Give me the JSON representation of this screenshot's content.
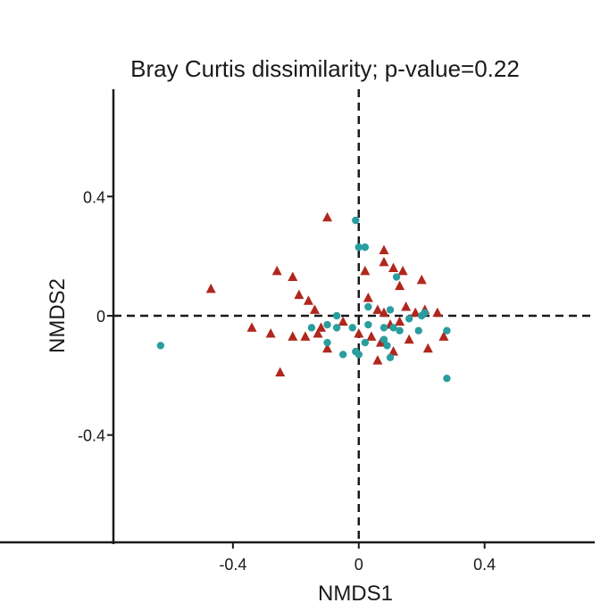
{
  "chart_data": {
    "type": "scatter",
    "title": "Bray Curtis dissimilarity; p-value=0.22",
    "xlabel": "NMDS1",
    "ylabel": "NMDS2",
    "xlim": [
      -0.78,
      0.75
    ],
    "ylim": [
      -0.76,
      0.76
    ],
    "xticks": [
      {
        "value": -0.4,
        "label": "-0.4"
      },
      {
        "value": 0,
        "label": "0"
      },
      {
        "value": 0.4,
        "label": "0.4"
      }
    ],
    "yticks": [
      {
        "value": 0.4,
        "label": "0.4"
      },
      {
        "value": 0,
        "label": "0"
      },
      {
        "value": -0.4,
        "label": "-0.4"
      }
    ],
    "reference_lines": {
      "x": 0,
      "y": 0,
      "style": "dashed"
    },
    "grid": false,
    "legend": "none",
    "series": [
      {
        "marker": "triangle",
        "color": "#b0271d",
        "points": [
          [
            -0.1,
            0.33
          ],
          [
            -0.47,
            0.09
          ],
          [
            -0.26,
            0.15
          ],
          [
            -0.21,
            0.13
          ],
          [
            -0.19,
            0.07
          ],
          [
            -0.16,
            0.05
          ],
          [
            -0.14,
            0.02
          ],
          [
            -0.34,
            -0.04
          ],
          [
            -0.28,
            -0.06
          ],
          [
            -0.21,
            -0.07
          ],
          [
            -0.17,
            -0.07
          ],
          [
            -0.13,
            -0.06
          ],
          [
            -0.12,
            -0.04
          ],
          [
            -0.1,
            -0.11
          ],
          [
            -0.05,
            -0.02
          ],
          [
            -0.25,
            -0.19
          ],
          [
            0.08,
            0.22
          ],
          [
            0.08,
            0.18
          ],
          [
            0.02,
            0.15
          ],
          [
            0.11,
            0.16
          ],
          [
            0.14,
            0.15
          ],
          [
            0.2,
            0.12
          ],
          [
            0.13,
            0.1
          ],
          [
            0.03,
            0.06
          ],
          [
            0.06,
            0.02
          ],
          [
            0.08,
            0.01
          ],
          [
            0.15,
            0.03
          ],
          [
            0.18,
            0.01
          ],
          [
            0.21,
            0.02
          ],
          [
            0.25,
            0.01
          ],
          [
            0.1,
            -0.03
          ],
          [
            0.13,
            -0.02
          ],
          [
            0.04,
            -0.07
          ],
          [
            0.07,
            -0.09
          ],
          [
            0.16,
            -0.08
          ],
          [
            0.27,
            -0.07
          ],
          [
            0.11,
            -0.12
          ],
          [
            0.22,
            -0.11
          ],
          [
            0.06,
            -0.15
          ],
          [
            0.0,
            -0.06
          ]
        ]
      },
      {
        "marker": "circle",
        "color": "#2a9d9f",
        "points": [
          [
            -0.63,
            -0.1
          ],
          [
            -0.01,
            0.32
          ],
          [
            0.0,
            0.23
          ],
          [
            0.02,
            0.23
          ],
          [
            0.12,
            0.13
          ],
          [
            0.03,
            0.03
          ],
          [
            0.1,
            0.02
          ],
          [
            0.2,
            0.0
          ],
          [
            0.21,
            0.01
          ],
          [
            -0.07,
            0.0
          ],
          [
            -0.1,
            -0.03
          ],
          [
            -0.07,
            -0.04
          ],
          [
            -0.02,
            -0.04
          ],
          [
            0.03,
            -0.03
          ],
          [
            0.08,
            -0.04
          ],
          [
            0.11,
            -0.04
          ],
          [
            0.16,
            -0.01
          ],
          [
            0.13,
            -0.05
          ],
          [
            0.19,
            -0.05
          ],
          [
            0.28,
            -0.05
          ],
          [
            -0.15,
            -0.04
          ],
          [
            -0.1,
            -0.09
          ],
          [
            0.02,
            -0.09
          ],
          [
            0.08,
            -0.08
          ],
          [
            0.09,
            -0.1
          ],
          [
            -0.05,
            -0.13
          ],
          [
            -0.01,
            -0.12
          ],
          [
            0.0,
            -0.13
          ],
          [
            0.1,
            -0.14
          ],
          [
            0.28,
            -0.21
          ]
        ]
      }
    ]
  }
}
